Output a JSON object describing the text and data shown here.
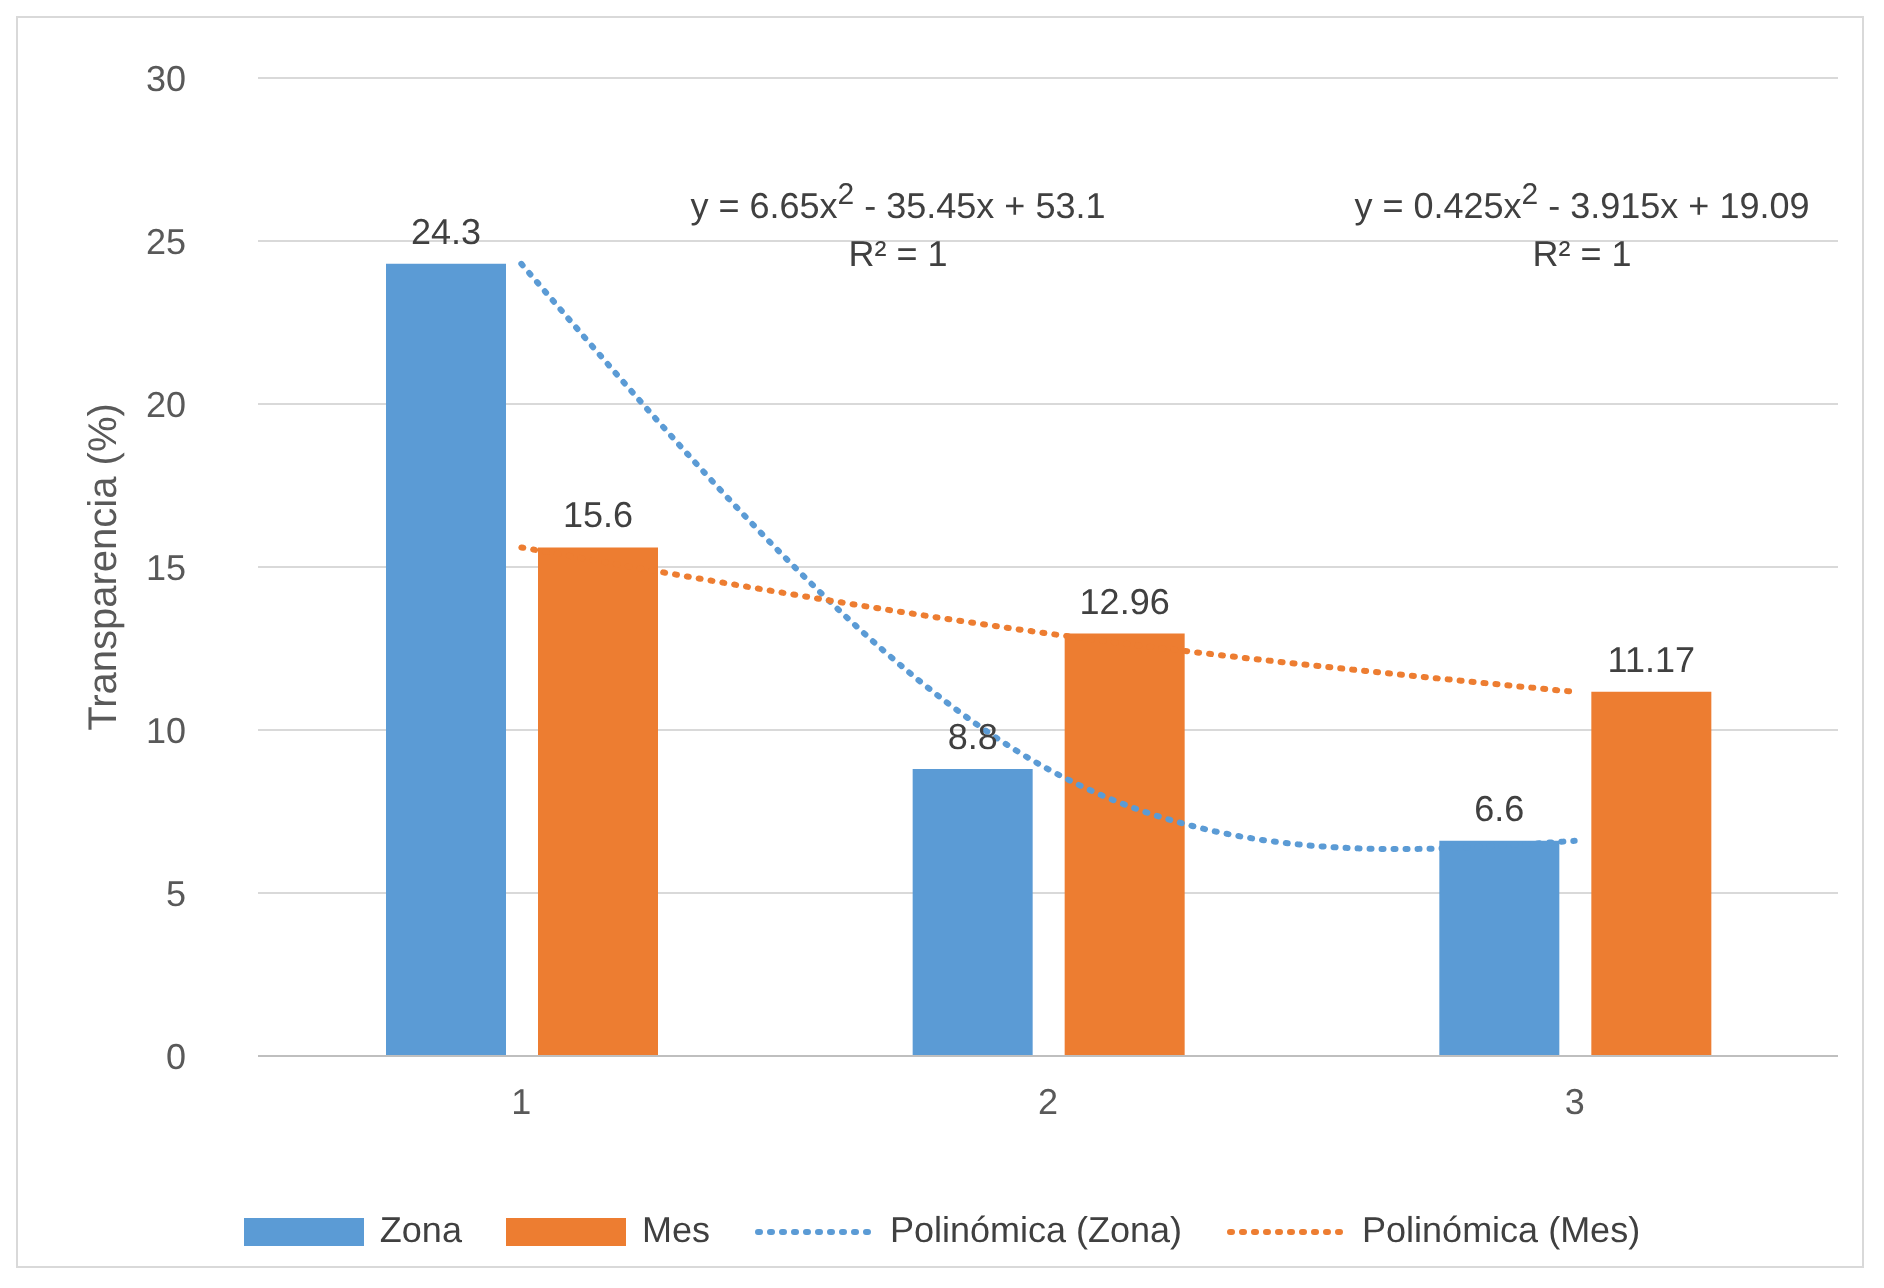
{
  "chart_data": {
    "type": "bar",
    "ylabel": "Transparencia (%)",
    "categories": [
      "1",
      "2",
      "3"
    ],
    "series": [
      {
        "name": "Zona",
        "color": "#5b9bd5",
        "values": [
          24.3,
          8.8,
          6.6
        ],
        "value_labels": [
          "24.3",
          "8.8",
          "6.6"
        ]
      },
      {
        "name": "Mes",
        "color": "#ed7d31",
        "values": [
          15.6,
          12.96,
          11.17
        ],
        "value_labels": [
          "15.6",
          "12.96",
          "11.17"
        ]
      },
      {
        "name": "Polinómica (Zona)",
        "type": "line",
        "line_style": "dotted",
        "color": "#5b9bd5",
        "values": [
          24.3,
          8.8,
          6.6
        ]
      },
      {
        "name": "Polinómica (Mes)",
        "type": "line",
        "line_style": "dotted",
        "color": "#ed7d31",
        "values": [
          15.6,
          12.96,
          11.17
        ]
      }
    ],
    "ylim": [
      0,
      30
    ],
    "yticks": [
      0,
      5,
      10,
      15,
      20,
      25,
      30
    ],
    "grid": "y",
    "legend": "bottom",
    "annotations": [
      "y = 6.65x$^{2}$ - 35.45x + 53.1",
      "R² = 1",
      "y = 0.425x$^{2}$ - 3.915x + 19.09",
      "R² = 1"
    ]
  }
}
